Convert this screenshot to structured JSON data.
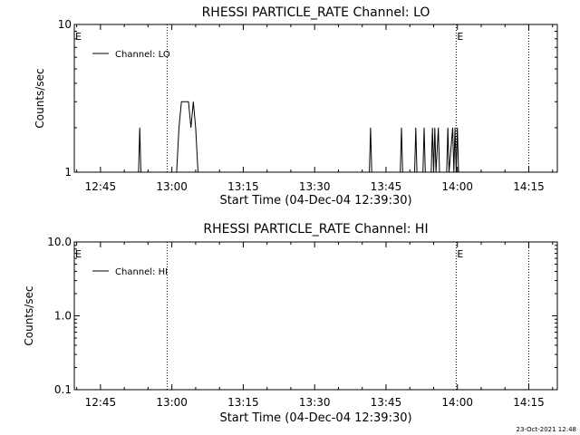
{
  "footer_timestamp": "23-Oct-2021 12:48",
  "chart_data": [
    {
      "type": "line",
      "title": "RHESSI PARTICLE_RATE Channel: LO",
      "xlabel": "Start Time (04-Dec-04 12:39:30)",
      "ylabel": "Counts/sec",
      "yscale": "log",
      "xlim": [
        "12:39:30",
        "14:21:00"
      ],
      "ylim": [
        1,
        10
      ],
      "x_ticks": [
        "12:45",
        "13:00",
        "13:15",
        "13:30",
        "13:45",
        "14:00",
        "14:15"
      ],
      "y_ticks": [
        "1",
        "10"
      ],
      "vertical_markers": [
        {
          "x": "12:59:00",
          "label": ""
        },
        {
          "x": "13:59:45",
          "label": "E"
        },
        {
          "x": "14:15:00",
          "label": ""
        }
      ],
      "left_marker_label": "E",
      "legend": {
        "position": "top-left",
        "entries": [
          "Channel: LO"
        ]
      },
      "series": [
        {
          "name": "Channel: LO",
          "points": [
            [
              "12:39:30",
              1
            ],
            [
              "12:53:00",
              1
            ],
            [
              "12:53:15",
              2
            ],
            [
              "12:53:30",
              1
            ],
            [
              "13:01:00",
              1
            ],
            [
              "13:01:30",
              2
            ],
            [
              "13:02:00",
              3
            ],
            [
              "13:03:30",
              3
            ],
            [
              "13:04:00",
              2
            ],
            [
              "13:04:30",
              3
            ],
            [
              "13:05:00",
              2
            ],
            [
              "13:05:30",
              1
            ],
            [
              "13:41:30",
              1
            ],
            [
              "13:41:45",
              2
            ],
            [
              "13:42:00",
              1
            ],
            [
              "13:48:00",
              1
            ],
            [
              "13:48:15",
              2
            ],
            [
              "13:48:30",
              1
            ],
            [
              "13:51:00",
              1
            ],
            [
              "13:51:15",
              2
            ],
            [
              "13:51:30",
              1
            ],
            [
              "13:52:45",
              1
            ],
            [
              "13:53:00",
              2
            ],
            [
              "13:53:15",
              1
            ],
            [
              "13:54:30",
              1
            ],
            [
              "13:54:45",
              2
            ],
            [
              "13:55:00",
              1
            ],
            [
              "13:55:15",
              2
            ],
            [
              "13:55:30",
              1
            ],
            [
              "13:56:00",
              2
            ],
            [
              "13:56:15",
              1
            ],
            [
              "13:57:45",
              1
            ],
            [
              "13:58:00",
              2
            ],
            [
              "13:58:15",
              1
            ],
            [
              "13:59:00",
              2
            ],
            [
              "13:59:15",
              1
            ],
            [
              "13:59:30",
              2
            ],
            [
              "13:59:45",
              1
            ],
            [
              "14:00:00",
              2
            ],
            [
              "14:00:15",
              1
            ],
            [
              "14:00:30",
              1
            ]
          ]
        }
      ]
    },
    {
      "type": "line",
      "title": "RHESSI PARTICLE_RATE Channel: HI",
      "xlabel": "Start Time (04-Dec-04 12:39:30)",
      "ylabel": "Counts/sec",
      "yscale": "log",
      "xlim": [
        "12:39:30",
        "14:21:00"
      ],
      "ylim": [
        0.1,
        10
      ],
      "x_ticks": [
        "12:45",
        "13:00",
        "13:15",
        "13:30",
        "13:45",
        "14:00",
        "14:15"
      ],
      "y_ticks": [
        "0.1",
        "1.0",
        "10.0"
      ],
      "vertical_markers": [
        {
          "x": "12:59:00",
          "label": ""
        },
        {
          "x": "13:59:45",
          "label": "E"
        },
        {
          "x": "14:15:00",
          "label": ""
        }
      ],
      "left_marker_label": "E",
      "legend": {
        "position": "top-left",
        "entries": [
          "Channel: HI"
        ]
      },
      "series": [
        {
          "name": "Channel: HI",
          "points": []
        }
      ]
    }
  ]
}
